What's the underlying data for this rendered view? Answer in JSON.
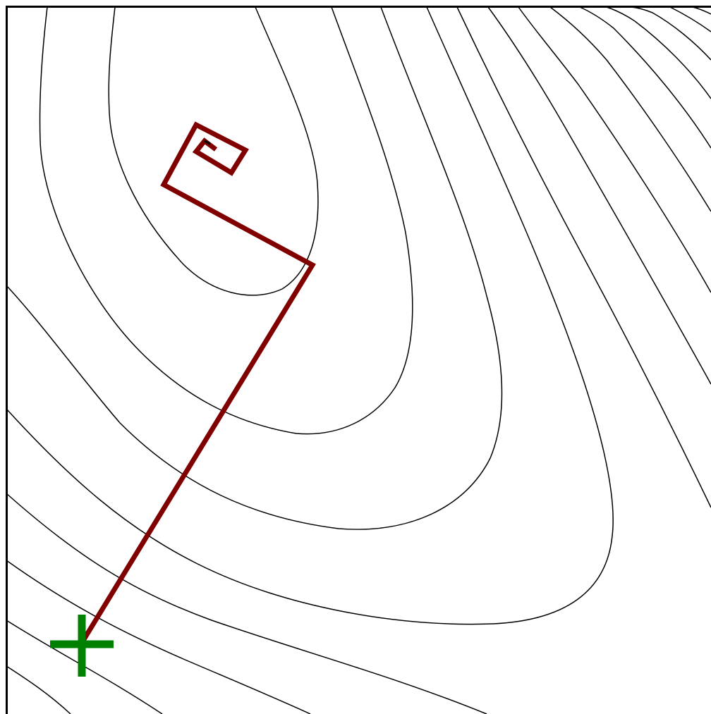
{
  "figure": {
    "description_visible_text": "",
    "colors": {
      "background": "#ffffff",
      "border": "#000000",
      "contour": "#000000",
      "path": "#800000",
      "start_marker": "#008000"
    },
    "elements": {
      "contours": "contour-lines",
      "path": "optimization-path",
      "start": "start-marker"
    }
  }
}
